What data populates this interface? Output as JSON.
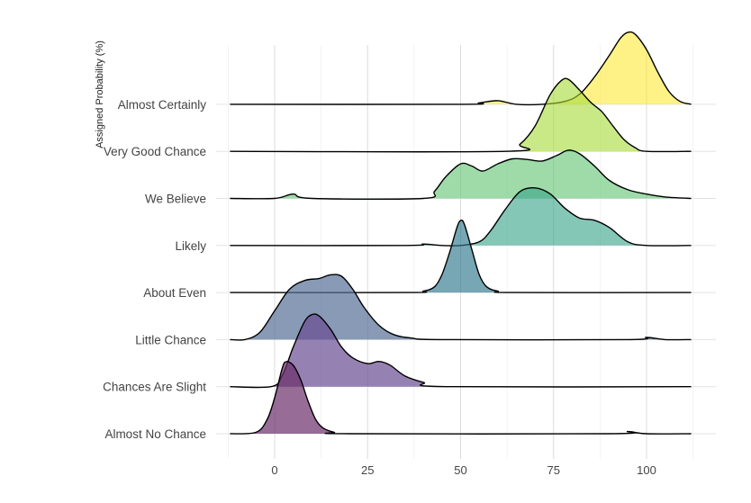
{
  "chart_data": {
    "type": "ridgeline",
    "title": "",
    "xlabel": "",
    "ylabel": "Assigned Probability (%)",
    "xlim": [
      -12,
      112
    ],
    "x_ticks": [
      0,
      25,
      50,
      75,
      100
    ],
    "grid": true,
    "categories": [
      "Almost No Chance",
      "Chances Are Slight",
      "Little Chance",
      "About Even",
      "Likely",
      "We Believe",
      "Very Good Chance",
      "Almost Certainly"
    ],
    "series": [
      {
        "name": "Almost No Chance",
        "color": "#6b2f6b",
        "opacity": 0.7,
        "points": [
          [
            -12,
            0.0
          ],
          [
            -5,
            0.02
          ],
          [
            -2,
            0.2
          ],
          [
            0,
            0.5
          ],
          [
            2,
            0.9
          ],
          [
            3,
            1.0
          ],
          [
            5,
            0.95
          ],
          [
            7,
            0.75
          ],
          [
            9,
            0.45
          ],
          [
            11,
            0.2
          ],
          [
            13,
            0.08
          ],
          [
            16,
            0.02
          ],
          [
            20,
            0.0
          ],
          [
            90,
            0.0
          ],
          [
            95,
            0.03
          ],
          [
            100,
            0.0
          ],
          [
            112,
            0.0
          ]
        ]
      },
      {
        "name": "Chances Are Slight",
        "color": "#6a4c93",
        "opacity": 0.7,
        "points": [
          [
            -12,
            0.0
          ],
          [
            -1,
            0.0
          ],
          [
            2,
            0.15
          ],
          [
            5,
            0.55
          ],
          [
            8,
            0.9
          ],
          [
            10,
            1.0
          ],
          [
            12,
            0.98
          ],
          [
            15,
            0.8
          ],
          [
            18,
            0.55
          ],
          [
            21,
            0.4
          ],
          [
            25,
            0.32
          ],
          [
            28,
            0.35
          ],
          [
            31,
            0.3
          ],
          [
            35,
            0.15
          ],
          [
            40,
            0.06
          ],
          [
            46,
            0.0
          ],
          [
            112,
            0.0
          ]
        ]
      },
      {
        "name": "Little Chance",
        "color": "#556f96",
        "opacity": 0.7,
        "points": [
          [
            -12,
            0.0
          ],
          [
            -8,
            0.0
          ],
          [
            -4,
            0.1
          ],
          [
            0,
            0.4
          ],
          [
            4,
            0.7
          ],
          [
            8,
            0.82
          ],
          [
            12,
            0.85
          ],
          [
            15,
            0.9
          ],
          [
            18,
            0.88
          ],
          [
            21,
            0.7
          ],
          [
            24,
            0.45
          ],
          [
            28,
            0.2
          ],
          [
            32,
            0.07
          ],
          [
            37,
            0.02
          ],
          [
            45,
            0.0
          ],
          [
            95,
            0.0
          ],
          [
            100,
            0.03
          ],
          [
            105,
            0.0
          ],
          [
            112,
            0.0
          ]
        ]
      },
      {
        "name": "About Even",
        "color": "#2e788c",
        "opacity": 0.65,
        "points": [
          [
            -12,
            0.0
          ],
          [
            36,
            0.0
          ],
          [
            40,
            0.02
          ],
          [
            43,
            0.08
          ],
          [
            45,
            0.25
          ],
          [
            47,
            0.55
          ],
          [
            49,
            0.9
          ],
          [
            50,
            1.0
          ],
          [
            51,
            0.95
          ],
          [
            53,
            0.6
          ],
          [
            55,
            0.25
          ],
          [
            57,
            0.08
          ],
          [
            60,
            0.02
          ],
          [
            64,
            0.0
          ],
          [
            112,
            0.0
          ]
        ]
      },
      {
        "name": "Likely",
        "color": "#33a187",
        "opacity": 0.6,
        "points": [
          [
            -12,
            0.0
          ],
          [
            35,
            0.0
          ],
          [
            40,
            0.02
          ],
          [
            45,
            0.0
          ],
          [
            50,
            0.0
          ],
          [
            55,
            0.05
          ],
          [
            58,
            0.2
          ],
          [
            62,
            0.5
          ],
          [
            66,
            0.75
          ],
          [
            70,
            0.8
          ],
          [
            74,
            0.72
          ],
          [
            78,
            0.52
          ],
          [
            82,
            0.38
          ],
          [
            86,
            0.35
          ],
          [
            90,
            0.25
          ],
          [
            95,
            0.05
          ],
          [
            100,
            0.0
          ],
          [
            112,
            0.0
          ]
        ]
      },
      {
        "name": "We Believe",
        "color": "#5ec36f",
        "opacity": 0.6,
        "points": [
          [
            -12,
            0.0
          ],
          [
            0,
            0.0
          ],
          [
            5,
            0.06
          ],
          [
            10,
            0.0
          ],
          [
            40,
            0.0
          ],
          [
            43,
            0.1
          ],
          [
            46,
            0.3
          ],
          [
            50,
            0.48
          ],
          [
            53,
            0.45
          ],
          [
            56,
            0.38
          ],
          [
            60,
            0.48
          ],
          [
            64,
            0.55
          ],
          [
            68,
            0.54
          ],
          [
            72,
            0.52
          ],
          [
            76,
            0.6
          ],
          [
            79,
            0.67
          ],
          [
            82,
            0.62
          ],
          [
            86,
            0.45
          ],
          [
            90,
            0.25
          ],
          [
            95,
            0.12
          ],
          [
            100,
            0.06
          ],
          [
            105,
            0.02
          ],
          [
            112,
            0.0
          ]
        ]
      },
      {
        "name": "Very Good Chance",
        "color": "#a5db36",
        "opacity": 0.6,
        "points": [
          [
            -12,
            0.0
          ],
          [
            62,
            0.0
          ],
          [
            66,
            0.1
          ],
          [
            70,
            0.35
          ],
          [
            74,
            0.78
          ],
          [
            77,
            0.98
          ],
          [
            79,
            1.0
          ],
          [
            82,
            0.85
          ],
          [
            85,
            0.68
          ],
          [
            88,
            0.55
          ],
          [
            91,
            0.35
          ],
          [
            94,
            0.16
          ],
          [
            97,
            0.05
          ],
          [
            100,
            0.0
          ],
          [
            112,
            0.0
          ]
        ]
      },
      {
        "name": "Almost Certainly",
        "color": "#fde725",
        "opacity": 0.55,
        "points": [
          [
            -12,
            0.0
          ],
          [
            50,
            0.0
          ],
          [
            55,
            0.02
          ],
          [
            60,
            0.05
          ],
          [
            65,
            0.0
          ],
          [
            72,
            0.0
          ],
          [
            78,
            0.04
          ],
          [
            82,
            0.14
          ],
          [
            86,
            0.38
          ],
          [
            90,
            0.68
          ],
          [
            93,
            0.92
          ],
          [
            95,
            1.0
          ],
          [
            97,
            0.97
          ],
          [
            100,
            0.76
          ],
          [
            103,
            0.45
          ],
          [
            106,
            0.18
          ],
          [
            109,
            0.04
          ],
          [
            112,
            0.0
          ]
        ]
      }
    ]
  }
}
